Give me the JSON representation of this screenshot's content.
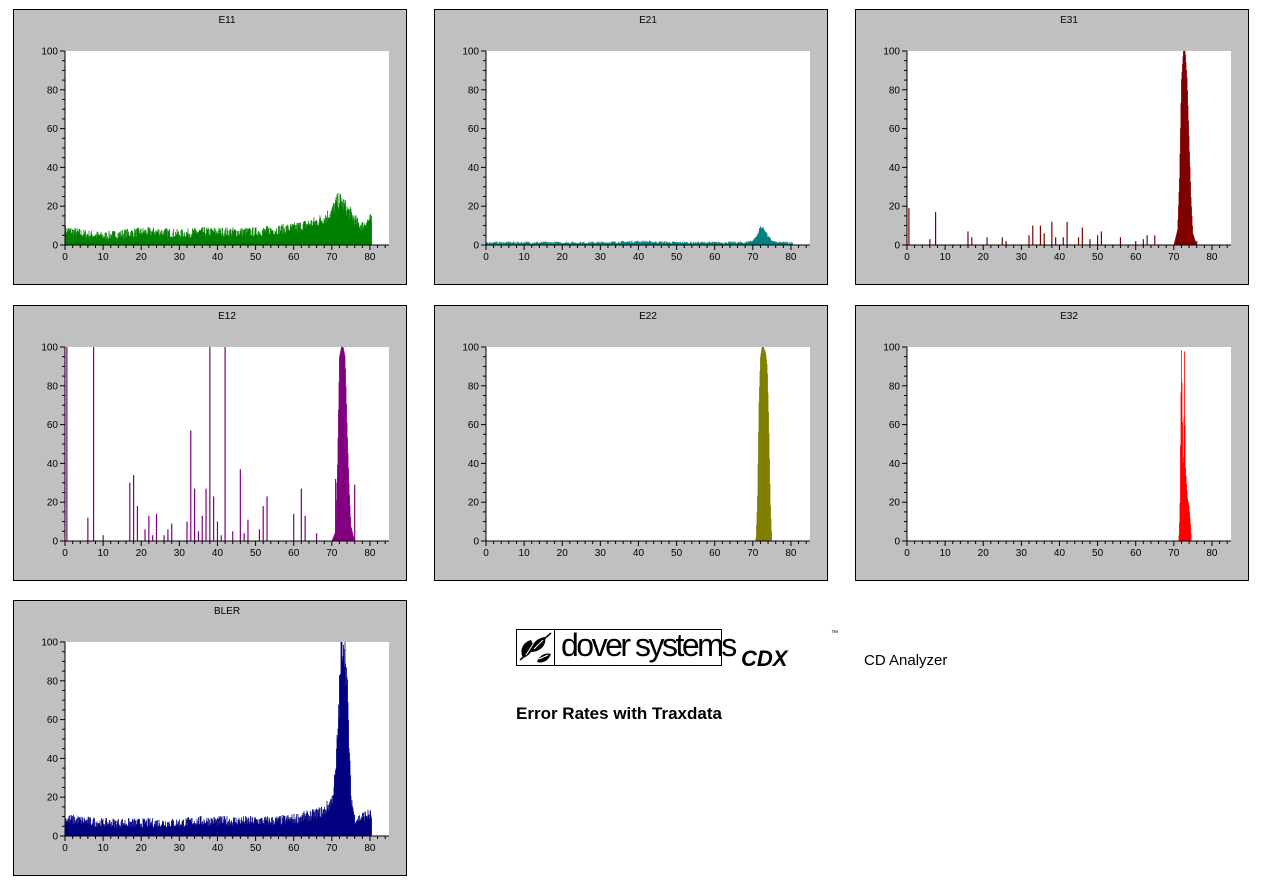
{
  "chart_data": [
    {
      "id": "e11",
      "type": "area",
      "title": "E11",
      "color": "#008000",
      "xlim": [
        0,
        85
      ],
      "ylim": [
        0,
        100
      ],
      "xticks": [
        "0",
        "10",
        "20",
        "30",
        "40",
        "50",
        "60",
        "70",
        "80"
      ],
      "yticks": [
        "0",
        "20",
        "40",
        "60",
        "80",
        "100"
      ],
      "x": [
        0,
        5,
        10,
        15,
        20,
        25,
        30,
        35,
        40,
        45,
        50,
        55,
        60,
        62,
        64,
        66,
        68,
        70,
        71,
        72,
        73,
        74,
        75,
        76,
        77,
        78,
        79,
        80,
        80.5
      ],
      "y": [
        7,
        5,
        4,
        5,
        6,
        6,
        5,
        6,
        6,
        6,
        6,
        7,
        8,
        9,
        10,
        11,
        13,
        16,
        20,
        22,
        20,
        17,
        15,
        12,
        10,
        9,
        11,
        12,
        12
      ],
      "noise": 6
    },
    {
      "id": "e21",
      "type": "area",
      "title": "E21",
      "color": "#008080",
      "xlim": [
        0,
        85
      ],
      "ylim": [
        0,
        100
      ],
      "xticks": [
        "0",
        "10",
        "20",
        "30",
        "40",
        "50",
        "60",
        "70",
        "80"
      ],
      "yticks": [
        "0",
        "20",
        "40",
        "60",
        "80",
        "100"
      ],
      "x": [
        0,
        10,
        20,
        30,
        40,
        50,
        60,
        68,
        70,
        71,
        72,
        73,
        74,
        75,
        76,
        78,
        80,
        80.5
      ],
      "y": [
        1,
        1,
        1,
        1,
        1.5,
        1,
        1,
        1,
        2,
        4,
        9,
        8,
        4,
        2,
        1,
        1,
        1,
        1
      ],
      "noise": 2
    },
    {
      "id": "e31",
      "type": "area",
      "title": "E31",
      "color": "#800000",
      "xlim": [
        0,
        85
      ],
      "ylim": [
        0,
        100
      ],
      "xticks": [
        "0",
        "10",
        "20",
        "30",
        "40",
        "50",
        "60",
        "70",
        "80"
      ],
      "yticks": [
        "0",
        "20",
        "40",
        "60",
        "80",
        "100"
      ],
      "x": [
        0,
        70,
        71,
        71.5,
        72,
        72.5,
        73,
        73.5,
        74,
        74.5,
        75,
        76,
        85
      ],
      "y": [
        0,
        0,
        8,
        35,
        85,
        100,
        100,
        85,
        55,
        25,
        6,
        0,
        0
      ],
      "spikes": [
        [
          0.5,
          19
        ],
        [
          6,
          3
        ],
        [
          7.5,
          17
        ],
        [
          16,
          7
        ],
        [
          17,
          4
        ],
        [
          21,
          4
        ],
        [
          25,
          4
        ],
        [
          26,
          2
        ],
        [
          32,
          5
        ],
        [
          33,
          10
        ],
        [
          35,
          10
        ],
        [
          36,
          6
        ],
        [
          38,
          12
        ],
        [
          39,
          4
        ],
        [
          41,
          4
        ],
        [
          42,
          12
        ],
        [
          45,
          4
        ],
        [
          46,
          9
        ],
        [
          48,
          3
        ],
        [
          50,
          5
        ],
        [
          51,
          7
        ],
        [
          56,
          4
        ],
        [
          60,
          2
        ],
        [
          62,
          3
        ],
        [
          63,
          5
        ],
        [
          65,
          5
        ],
        [
          76,
          2
        ]
      ]
    },
    {
      "id": "e12",
      "type": "area",
      "title": "E12",
      "color": "#800080",
      "xlim": [
        0,
        85
      ],
      "ylim": [
        0,
        100
      ],
      "xticks": [
        "0",
        "10",
        "20",
        "30",
        "40",
        "50",
        "60",
        "70",
        "80"
      ],
      "yticks": [
        "0",
        "20",
        "40",
        "60",
        "80",
        "100"
      ],
      "x": [
        0,
        70,
        71,
        71.5,
        72,
        72.5,
        73,
        73.5,
        74,
        74.5,
        75,
        76,
        85
      ],
      "y": [
        0,
        0,
        5,
        40,
        95,
        100,
        100,
        95,
        60,
        30,
        8,
        0,
        0
      ],
      "spikes": [
        [
          0.5,
          100
        ],
        [
          6,
          12
        ],
        [
          7.5,
          100
        ],
        [
          10,
          3
        ],
        [
          17,
          30
        ],
        [
          18,
          34
        ],
        [
          19,
          18
        ],
        [
          21,
          6
        ],
        [
          22,
          13
        ],
        [
          23,
          3
        ],
        [
          24,
          14
        ],
        [
          26,
          3
        ],
        [
          27,
          6
        ],
        [
          28,
          9
        ],
        [
          32,
          10
        ],
        [
          33,
          57
        ],
        [
          34,
          27
        ],
        [
          35,
          5
        ],
        [
          36,
          13
        ],
        [
          37,
          27
        ],
        [
          38,
          100
        ],
        [
          39,
          23
        ],
        [
          40,
          10
        ],
        [
          41,
          3
        ],
        [
          42,
          100
        ],
        [
          44,
          5
        ],
        [
          46,
          37
        ],
        [
          47,
          4
        ],
        [
          48,
          11
        ],
        [
          51,
          6
        ],
        [
          52,
          18
        ],
        [
          53,
          23
        ],
        [
          60,
          14
        ],
        [
          62,
          27
        ],
        [
          63,
          13
        ],
        [
          66,
          4
        ],
        [
          71,
          32
        ],
        [
          76,
          29
        ]
      ]
    },
    {
      "id": "e22",
      "type": "area",
      "title": "E22",
      "color": "#808000",
      "xlim": [
        0,
        85
      ],
      "ylim": [
        0,
        100
      ],
      "xticks": [
        "0",
        "10",
        "20",
        "30",
        "40",
        "50",
        "60",
        "70",
        "80"
      ],
      "yticks": [
        "0",
        "20",
        "40",
        "60",
        "80",
        "100"
      ],
      "x": [
        0,
        70.8,
        71.2,
        71.6,
        72,
        72.4,
        72.8,
        73.4,
        73.8,
        74.2,
        74.6,
        75,
        85
      ],
      "y": [
        0,
        0,
        20,
        70,
        95,
        100,
        100,
        97,
        90,
        60,
        20,
        0,
        0
      ]
    },
    {
      "id": "e32",
      "type": "area",
      "title": "E32",
      "color": "#ff0000",
      "xlim": [
        0,
        85
      ],
      "ylim": [
        0,
        100
      ],
      "xticks": [
        "0",
        "10",
        "20",
        "30",
        "40",
        "50",
        "60",
        "70",
        "80"
      ],
      "yticks": [
        "0",
        "20",
        "40",
        "60",
        "80",
        "100"
      ],
      "x": [
        0,
        71.3,
        71.6,
        71.8,
        72,
        72.2,
        72.4,
        72.6,
        72.8,
        73,
        73.3,
        73.6,
        74,
        74.4,
        74.6,
        85
      ],
      "y": [
        0,
        0,
        15,
        60,
        100,
        75,
        40,
        45,
        98,
        40,
        30,
        22,
        18,
        8,
        0,
        0
      ]
    },
    {
      "id": "bler",
      "type": "area",
      "title": "BLER",
      "color": "#000080",
      "xlim": [
        0,
        85
      ],
      "ylim": [
        0,
        100
      ],
      "xticks": [
        "0",
        "10",
        "20",
        "30",
        "40",
        "50",
        "60",
        "70",
        "80"
      ],
      "yticks": [
        "0",
        "20",
        "40",
        "60",
        "80",
        "100"
      ],
      "x": [
        0,
        5,
        10,
        15,
        20,
        25,
        30,
        35,
        40,
        45,
        50,
        55,
        60,
        65,
        68,
        70,
        71,
        72,
        72.5,
        73,
        73.5,
        74,
        75,
        76,
        77,
        78,
        79,
        80,
        80.5
      ],
      "y": [
        8,
        7,
        6,
        6,
        6,
        6,
        6,
        7,
        7,
        7,
        7,
        7,
        8,
        10,
        12,
        17,
        30,
        70,
        95,
        100,
        95,
        75,
        20,
        8,
        8,
        9,
        10,
        10,
        10
      ],
      "noise": 6
    }
  ],
  "logo": {
    "brand": "dover systems",
    "product": "CDX",
    "tm": "™",
    "subtitle": "CD Analyzer"
  },
  "report_title": "Error Rates with Traxdata"
}
